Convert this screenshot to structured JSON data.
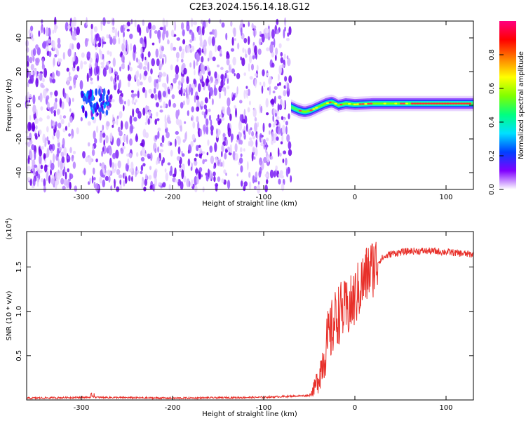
{
  "title": "C2E3.2024.156.14.18.G12",
  "chart_data": [
    {
      "type": "heatmap",
      "xlabel": "Height of straight line (km)",
      "ylabel": "Frequency (Hz)",
      "xlim": [
        -360,
        130
      ],
      "ylim": [
        -50,
        50
      ],
      "x_ticks": [
        -300,
        -200,
        -100,
        0,
        100
      ],
      "x_tick_labels": [
        "-300",
        "-200",
        "-100",
        "0",
        "100"
      ],
      "y_ticks": [
        -40,
        -20,
        0,
        20,
        40
      ],
      "y_tick_labels": [
        "-40",
        "-20",
        "0",
        "20",
        "40"
      ],
      "colorbar": {
        "label": "Normalized spectral amplitude",
        "range": [
          0,
          1
        ],
        "ticks": [
          0.0,
          0.2,
          0.4,
          0.6,
          0.8
        ],
        "tick_labels": [
          "0.0",
          "0.2",
          "0.4",
          "0.6",
          "0.8"
        ],
        "colormap": "rainbow",
        "colors": [
          "#ffffff",
          "#8000ff",
          "#0040ff",
          "#00e0ff",
          "#00ff80",
          "#80ff00",
          "#ffff00",
          "#ff8000",
          "#ff0000",
          "#ff0080"
        ]
      },
      "noise_region_x": [
        -360,
        -70
      ],
      "signal_track": {
        "x": [
          -70,
          -62,
          -55,
          -48,
          -40,
          -32,
          -25,
          -18,
          -10,
          0,
          20,
          50,
          80,
          100,
          130
        ],
        "freq": [
          -1,
          -3,
          -4,
          -3,
          -1,
          1,
          2,
          0,
          1,
          0.5,
          1,
          1,
          1,
          1,
          1
        ]
      },
      "grid": false
    },
    {
      "type": "line",
      "xlabel": "Height of straight line (km)",
      "ylabel": "SNR (10 * v/v)",
      "y_multiplier_label": "(x10",
      "y_multiplier_exp": "4",
      "y_multiplier_close": ")",
      "xlim": [
        -360,
        130
      ],
      "ylim": [
        0,
        1.9
      ],
      "x_ticks": [
        -300,
        -200,
        -100,
        0,
        100
      ],
      "x_tick_labels": [
        "-300",
        "-200",
        "-100",
        "0",
        "100"
      ],
      "y_ticks": [
        0.5,
        1.0,
        1.5
      ],
      "y_tick_labels": [
        "0.5",
        "1.0",
        "1.5"
      ],
      "line_color": "#e8302a",
      "series_profile": {
        "x": [
          -360,
          -290,
          -200,
          -100,
          -50,
          -45,
          -40,
          -35,
          -30,
          -25,
          -20,
          -15,
          -10,
          -5,
          0,
          5,
          10,
          15,
          20,
          25,
          30,
          40,
          60,
          80,
          100,
          130
        ],
        "y": [
          0.02,
          0.03,
          0.02,
          0.03,
          0.05,
          0.12,
          0.25,
          0.45,
          0.65,
          0.8,
          0.95,
          1.0,
          1.0,
          1.05,
          1.15,
          1.25,
          1.35,
          1.45,
          1.5,
          1.55,
          1.6,
          1.65,
          1.68,
          1.68,
          1.67,
          1.64
        ]
      },
      "grid": false
    }
  ]
}
